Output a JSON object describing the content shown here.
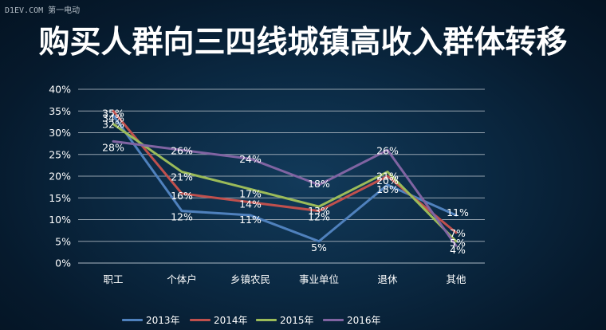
{
  "watermark": "D1EV.COM 第一电动",
  "title": "购买人群向三四线城镇高收入群体转移",
  "chart_data": {
    "type": "line",
    "title": "购买人群向三四线城镇高收入群体转移",
    "categories": [
      "职工",
      "个体户",
      "乡镇农民",
      "事业单位",
      "退休",
      "其他"
    ],
    "ylim": [
      0,
      40
    ],
    "yticks": [
      "0%",
      "5%",
      "10%",
      "15%",
      "20%",
      "25%",
      "30%",
      "35%",
      "40%"
    ],
    "grid": true,
    "legend_position": "bottom",
    "series": [
      {
        "name": "2013年",
        "color": "#4f81bd",
        "values": [
          34,
          12,
          11,
          5,
          18,
          11
        ],
        "labels": [
          "34%",
          "12%",
          "11%",
          "5%",
          "18%",
          "11%"
        ]
      },
      {
        "name": "2014年",
        "color": "#c0504d",
        "values": [
          35,
          16,
          14,
          12,
          20,
          7
        ],
        "labels": [
          "35%",
          "16%",
          "14%",
          "12%",
          "20%",
          "7%"
        ]
      },
      {
        "name": "2015年",
        "color": "#9bbb59",
        "values": [
          32,
          21,
          17,
          13,
          21,
          5
        ],
        "labels": [
          "32%",
          "21%",
          "17%",
          "13%",
          "21%",
          "5%"
        ]
      },
      {
        "name": "2016年",
        "color": "#8064a2",
        "values": [
          28,
          26,
          24,
          18,
          26,
          4
        ],
        "labels": [
          "28%",
          "26%",
          "24%",
          "18%",
          "26%",
          "4%"
        ]
      }
    ]
  }
}
